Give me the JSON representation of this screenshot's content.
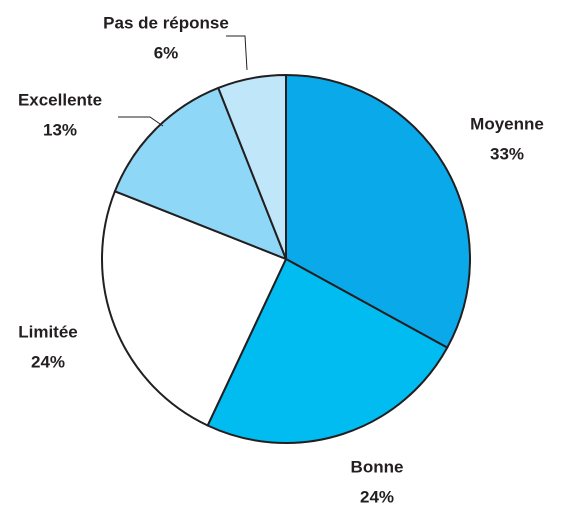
{
  "chart_data": {
    "type": "pie",
    "categories": [
      "Moyenne",
      "Bonne",
      "Limitée",
      "Excellente",
      "Pas de réponse"
    ],
    "values": [
      33,
      24,
      24,
      13,
      6
    ],
    "value_labels": [
      "33%",
      "24%",
      "24%",
      "13%",
      "6%"
    ],
    "colors": [
      "#0aa9e9",
      "#00bcf1",
      "#ffffff",
      "#8fd7f6",
      "#c0e6f9"
    ]
  }
}
